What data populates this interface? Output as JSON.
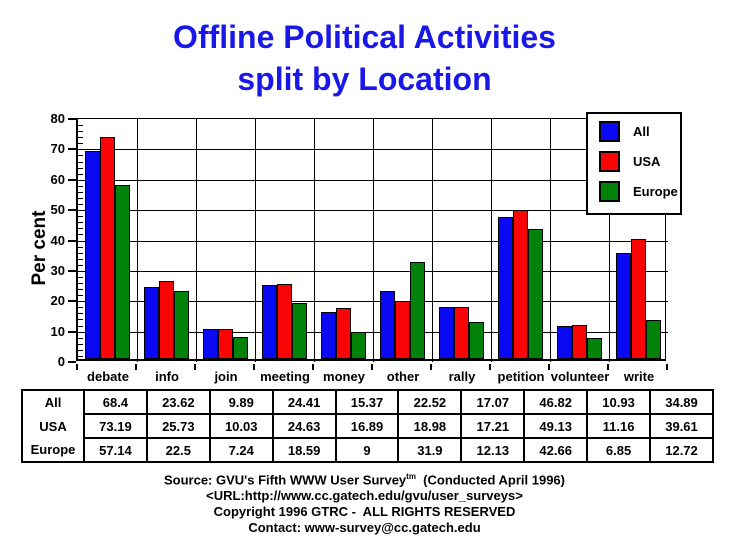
{
  "title": {
    "line1": "Offline Political Activities",
    "line2": "split by Location",
    "color": "#1a18e8"
  },
  "chart_data": {
    "type": "bar",
    "title": "Offline Political Activities split by Location",
    "categories": [
      "debate",
      "info",
      "join",
      "meeting",
      "money",
      "other",
      "rally",
      "petition",
      "volunteer",
      "write"
    ],
    "series": [
      {
        "name": "All",
        "color": "#0909f2",
        "values": [
          68.4,
          23.62,
          9.89,
          24.41,
          15.37,
          22.52,
          17.07,
          46.82,
          10.93,
          34.89
        ]
      },
      {
        "name": "USA",
        "color": "#f90505",
        "values": [
          73.19,
          25.73,
          10.03,
          24.63,
          16.89,
          18.98,
          17.21,
          49.13,
          11.16,
          39.61
        ]
      },
      {
        "name": "Europe",
        "color": "#028209",
        "values": [
          57.14,
          22.5,
          7.24,
          18.59,
          9,
          31.9,
          12.13,
          42.66,
          6.85,
          12.72
        ]
      }
    ],
    "xlabel": "",
    "ylabel": "Per cent",
    "ylim": [
      0,
      80
    ],
    "y_ticks": [
      0,
      10,
      20,
      30,
      40,
      50,
      60,
      70,
      80
    ],
    "y_minor_step": 2,
    "grid": true,
    "legend_position": "top-right"
  },
  "table": {
    "rows": [
      {
        "label": "All",
        "cells": [
          "68.4",
          "23.62",
          "9.89",
          "24.41",
          "15.37",
          "22.52",
          "17.07",
          "46.82",
          "10.93",
          "34.89"
        ]
      },
      {
        "label": "USA",
        "cells": [
          "73.19",
          "25.73",
          "10.03",
          "24.63",
          "16.89",
          "18.98",
          "17.21",
          "49.13",
          "11.16",
          "39.61"
        ]
      },
      {
        "label": "Europe",
        "cells": [
          "57.14",
          "22.5",
          "7.24",
          "18.59",
          "9",
          "31.9",
          "12.13",
          "42.66",
          "6.85",
          "12.72"
        ]
      }
    ]
  },
  "footer": {
    "source_prefix": "Source: GVU's Fifth WWW User Survey",
    "source_sup": "tm",
    "source_suffix": "  (Conducted April 1996)",
    "url_line": "<URL:http://www.cc.gatech.edu/gvu/user_surveys>",
    "copyright_line": "Copyright 1996 GTRC -  ALL RIGHTS RESERVED",
    "contact_line": "Contact: www-survey@cc.gatech.edu"
  }
}
